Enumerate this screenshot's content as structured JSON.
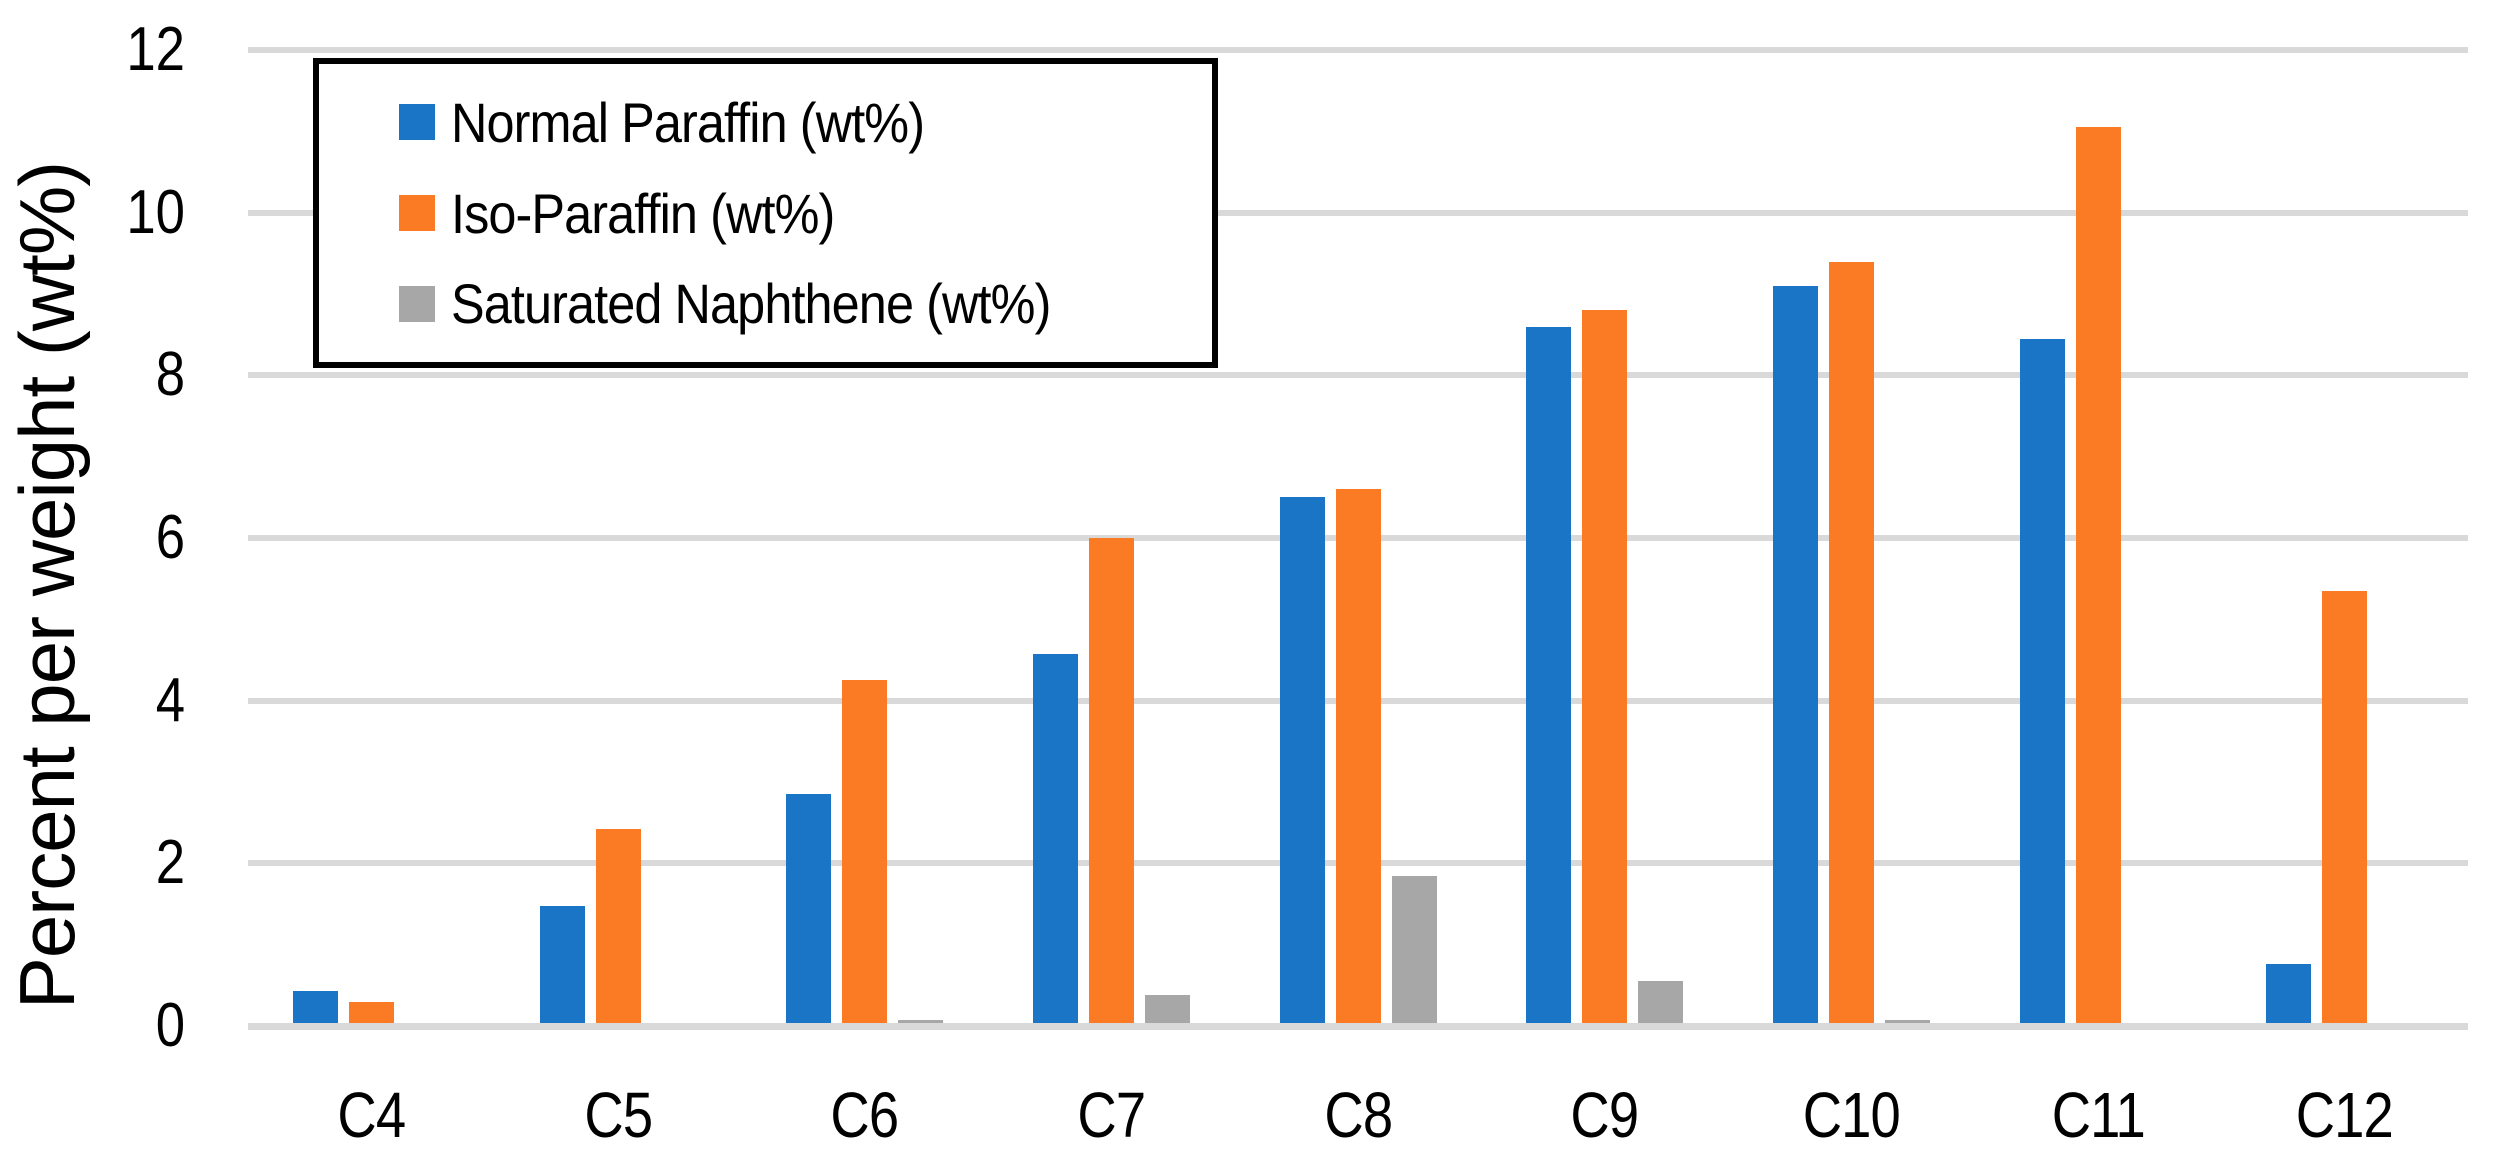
{
  "chart_data": {
    "type": "bar",
    "title": "",
    "ylabel": "Percent per weight (wt%)",
    "xlabel": "",
    "categories": [
      "C4",
      "C5",
      "C6",
      "C7",
      "C8",
      "C9",
      "C10",
      "C11",
      "C12"
    ],
    "series": [
      {
        "name": "Normal Paraffin (wt%)",
        "color": "#1B75C7",
        "values": [
          0.43,
          1.47,
          2.85,
          4.57,
          6.5,
          8.6,
          9.1,
          8.45,
          0.76
        ]
      },
      {
        "name": "Iso-Paraffin (wt%)",
        "color": "#FB7B25",
        "values": [
          0.3,
          2.42,
          4.25,
          6.0,
          6.6,
          8.8,
          9.4,
          11.05,
          5.35
        ]
      },
      {
        "name": "Saturated Naphthene (wt%)",
        "color": "#A7A7A7",
        "values": [
          0,
          0,
          0.07,
          0.38,
          1.85,
          0.55,
          0.08,
          0,
          0
        ]
      }
    ],
    "ylim": [
      0,
      12
    ],
    "yticks": [
      0,
      2,
      4,
      6,
      8,
      10,
      12
    ],
    "grid": true,
    "gridline_color": "#D9D9D9",
    "axis_line_color": "#D9D9D9",
    "legend_position": "top-left",
    "legend_border_color": "#000000",
    "background": "#FFFFFF"
  }
}
